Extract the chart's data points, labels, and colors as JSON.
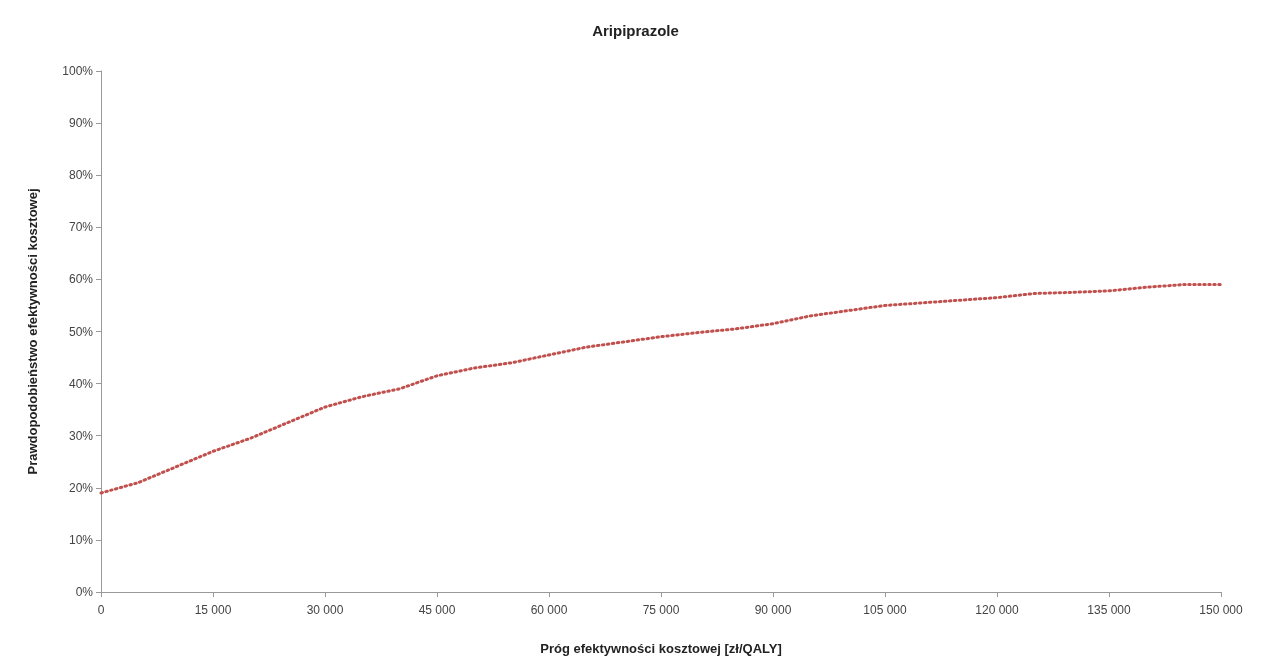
{
  "chart_data": {
    "type": "line",
    "title": "Aripiprazole",
    "xlabel": "Próg efektywności kosztowej [zł/QALY]",
    "ylabel": "Prawdopodobieństwo efektywności kosztowej",
    "series": [
      {
        "color": "#c0504d",
        "x": [
          0,
          5000,
          10000,
          15000,
          20000,
          25000,
          30000,
          35000,
          40000,
          45000,
          50000,
          55000,
          60000,
          65000,
          70000,
          75000,
          80000,
          85000,
          90000,
          95000,
          100000,
          105000,
          110000,
          115000,
          120000,
          125000,
          130000,
          135000,
          140000,
          145000,
          150000
        ],
        "values": [
          19,
          21,
          24,
          27,
          29.5,
          32.5,
          35.5,
          37.5,
          39,
          41.5,
          43,
          44,
          45.5,
          47,
          48,
          49,
          49.8,
          50.5,
          51.5,
          53,
          54,
          55,
          55.5,
          56,
          56.5,
          57.3,
          57.5,
          57.8,
          58.5,
          59,
          59
        ]
      }
    ],
    "xlim": [
      0,
      150000
    ],
    "xticks": [
      0,
      {
        "value": 15000,
        "label": "15 000"
      },
      {
        "value": 30000,
        "label": "30 000"
      },
      {
        "value": 45000,
        "label": "45 000"
      },
      {
        "value": 60000,
        "label": "60 000"
      },
      {
        "value": 75000,
        "label": "75 000"
      },
      {
        "value": 90000,
        "label": "90 000"
      },
      {
        "value": 105000,
        "label": "105 000"
      },
      {
        "value": 120000,
        "label": "120 000"
      },
      {
        "value": 135000,
        "label": "135 000"
      },
      {
        "value": 150000,
        "label": "150 000"
      }
    ],
    "ylim": [
      0,
      100
    ],
    "yticks": [
      {
        "value": 0,
        "label": "0%"
      },
      {
        "value": 10,
        "label": "10%"
      },
      {
        "value": 20,
        "label": "20%"
      },
      {
        "value": 30,
        "label": "30%"
      },
      {
        "value": 40,
        "label": "40%"
      },
      {
        "value": 50,
        "label": "50%"
      },
      {
        "value": 60,
        "label": "60%"
      },
      {
        "value": 70,
        "label": "70%"
      },
      {
        "value": 80,
        "label": "80%"
      },
      {
        "value": 90,
        "label": "90%"
      },
      {
        "value": 100,
        "label": "100%"
      }
    ],
    "grid": false,
    "marker": "none",
    "line_style": "dotted"
  }
}
